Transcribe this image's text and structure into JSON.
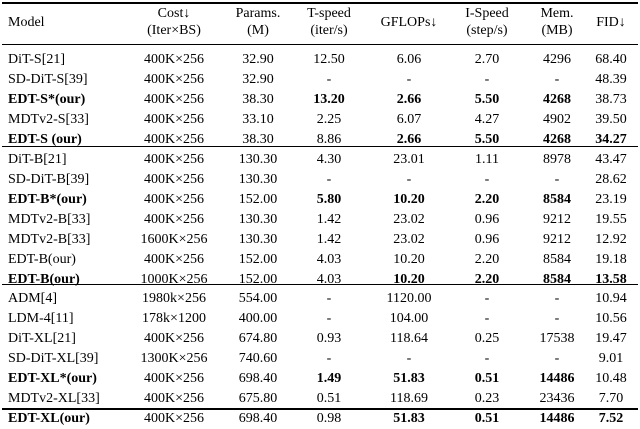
{
  "headers": [
    {
      "lines": [
        "Model"
      ]
    },
    {
      "lines": [
        "Cost↓",
        "(Iter×BS)"
      ]
    },
    {
      "lines": [
        "Params.",
        "(M)"
      ]
    },
    {
      "lines": [
        "T-speed",
        "(iter/s)"
      ]
    },
    {
      "lines": [
        "GFLOPs↓"
      ]
    },
    {
      "lines": [
        "I-Speed",
        "(step/s)"
      ]
    },
    {
      "lines": [
        "Mem.",
        "(MB)"
      ]
    },
    {
      "lines": [
        "FID↓"
      ]
    }
  ],
  "groups": [
    {
      "rows": [
        {
          "cells": [
            "DiT-S[21]",
            "400K×256",
            "32.90",
            "12.50",
            "6.06",
            "2.70",
            "4296",
            "68.40"
          ],
          "bold": []
        },
        {
          "cells": [
            "SD-DiT-S[39]",
            "400K×256",
            "32.90",
            "-",
            "-",
            "-",
            "-",
            "48.39"
          ],
          "bold": []
        },
        {
          "cells": [
            "EDT-S*(our)",
            "400K×256",
            "38.30",
            "13.20",
            "2.66",
            "5.50",
            "4268",
            "38.73"
          ],
          "bold": [
            0,
            3,
            4,
            5,
            6
          ]
        },
        {
          "cells": [
            "MDTv2-S[33]",
            "400K×256",
            "33.10",
            "2.25",
            "6.07",
            "4.27",
            "4902",
            "39.50"
          ],
          "bold": []
        },
        {
          "cells": [
            "EDT-S (our)",
            "400K×256",
            "38.30",
            "8.86",
            "2.66",
            "5.50",
            "4268",
            "34.27"
          ],
          "bold": [
            0,
            4,
            5,
            6,
            7
          ]
        }
      ]
    },
    {
      "rows": [
        {
          "cells": [
            "DiT-B[21]",
            "400K×256",
            "130.30",
            "4.30",
            "23.01",
            "1.11",
            "8978",
            "43.47"
          ],
          "bold": []
        },
        {
          "cells": [
            "SD-DiT-B[39]",
            "400K×256",
            "130.30",
            "-",
            "-",
            "-",
            "-",
            "28.62"
          ],
          "bold": []
        },
        {
          "cells": [
            "EDT-B*(our)",
            "400K×256",
            "152.00",
            "5.80",
            "10.20",
            "2.20",
            "8584",
            "23.19"
          ],
          "bold": [
            0,
            3,
            4,
            5,
            6
          ]
        },
        {
          "cells": [
            "MDTv2-B[33]",
            "400K×256",
            "130.30",
            "1.42",
            "23.02",
            "0.96",
            "9212",
            "19.55"
          ],
          "bold": []
        },
        {
          "cells": [
            "MDTv2-B[33]",
            "1600K×256",
            "130.30",
            "1.42",
            "23.02",
            "0.96",
            "9212",
            "12.92"
          ],
          "bold": []
        },
        {
          "cells": [
            "EDT-B(our)",
            "400K×256",
            "152.00",
            "4.03",
            "10.20",
            "2.20",
            "8584",
            "19.18"
          ],
          "bold": []
        },
        {
          "cells": [
            "EDT-B(our)",
            "1000K×256",
            "152.00",
            "4.03",
            "10.20",
            "2.20",
            "8584",
            "13.58"
          ],
          "bold": [
            0,
            4,
            5,
            6,
            7
          ]
        }
      ]
    },
    {
      "rows": [
        {
          "cells": [
            "ADM[4]",
            "1980k×256",
            "554.00",
            "-",
            "1120.00",
            "-",
            "-",
            "10.94"
          ],
          "bold": []
        },
        {
          "cells": [
            "LDM-4[11]",
            "178k×1200",
            "400.00",
            "-",
            "104.00",
            "-",
            "-",
            "10.56"
          ],
          "bold": []
        },
        {
          "cells": [
            "DiT-XL[21]",
            "400K×256",
            "674.80",
            "0.93",
            "118.64",
            "0.25",
            "17538",
            "19.47"
          ],
          "bold": []
        },
        {
          "cells": [
            "SD-DiT-XL[39]",
            "1300K×256",
            "740.60",
            "-",
            "-",
            "-",
            "-",
            "9.01"
          ],
          "bold": []
        },
        {
          "cells": [
            "EDT-XL*(our)",
            "400K×256",
            "698.40",
            "1.49",
            "51.83",
            "0.51",
            "14486",
            "10.48"
          ],
          "bold": [
            0,
            3,
            4,
            5,
            6
          ]
        },
        {
          "cells": [
            "MDTv2-XL[33]",
            "400K×256",
            "675.80",
            "0.51",
            "118.69",
            "0.23",
            "23436",
            "7.70"
          ],
          "bold": []
        },
        {
          "cells": [
            "EDT-XL(our)",
            "400K×256",
            "698.40",
            "0.98",
            "51.83",
            "0.51",
            "14486",
            "7.52"
          ],
          "bold": [
            0,
            4,
            5,
            6,
            7
          ]
        }
      ]
    }
  ]
}
